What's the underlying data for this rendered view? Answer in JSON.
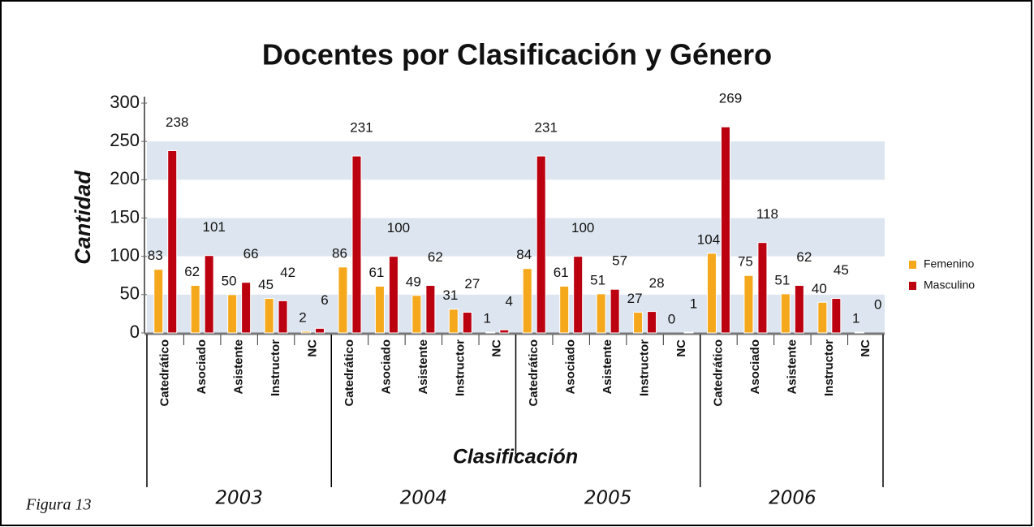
{
  "chart_data": {
    "type": "bar",
    "title": "Docentes por Clasificación y Género",
    "y_label": "Cantidad",
    "x_label": "Clasificación",
    "groups": [
      "2003",
      "2004",
      "2005",
      "2006"
    ],
    "categories": [
      "Catedrático",
      "Asociado",
      "Asistente",
      "Instructor",
      "NC",
      "Catedrático",
      "Asociado",
      "Asistente",
      "Instructor",
      "NC",
      "Catedrático",
      "Asociado",
      "Asistente",
      "Instructor",
      "NC",
      "Catedrático",
      "Asociado",
      "Asistente",
      "Instructor",
      "NC"
    ],
    "series": [
      {
        "name": "Femenino",
        "color": "#f5a81c",
        "values": [
          83,
          62,
          50,
          45,
          2,
          86,
          61,
          49,
          31,
          1,
          84,
          61,
          51,
          27,
          0,
          104,
          75,
          51,
          40,
          1
        ]
      },
      {
        "name": "Masculino",
        "color": "#bb0010",
        "values": [
          238,
          101,
          66,
          42,
          6,
          231,
          100,
          62,
          27,
          4,
          231,
          100,
          57,
          28,
          1,
          269,
          118,
          62,
          45,
          0
        ]
      }
    ],
    "ylim": [
      0,
      300
    ],
    "yticks": [
      0,
      50,
      100,
      150,
      200,
      250,
      300
    ],
    "grid": true,
    "legend": "right"
  },
  "caption": "Figura 13"
}
